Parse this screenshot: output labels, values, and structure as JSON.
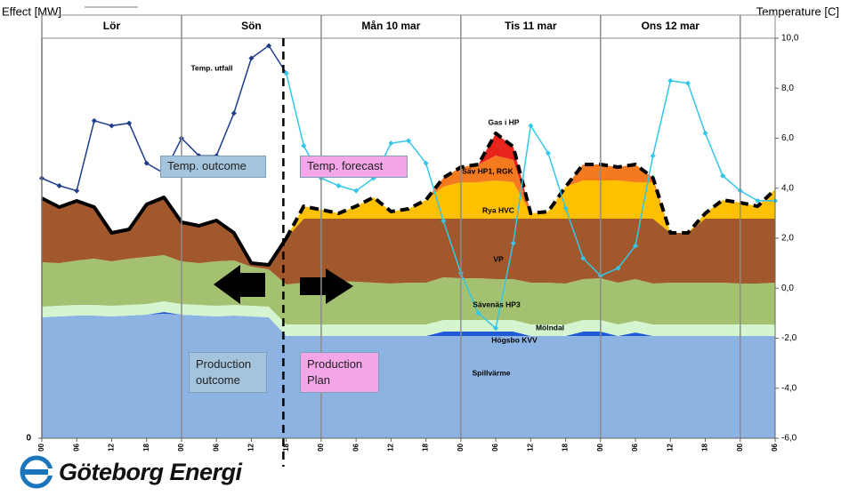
{
  "chart_data": {
    "type": "stacked-area",
    "ylabel": "Effect [MW]",
    "y2label": "Temperature [C]",
    "days": [
      {
        "label": "Lör",
        "start": 0
      },
      {
        "label": "Sön",
        "start": 24
      },
      {
        "label": "Mån 10 mar",
        "start": 48
      },
      {
        "label": "Tis 11 mar",
        "start": 72
      },
      {
        "label": "Ons 12 mar",
        "start": 96
      }
    ],
    "forecast_start": 41.5,
    "x": [
      0,
      3,
      6,
      9,
      12,
      15,
      18,
      21,
      24,
      27,
      30,
      33,
      36,
      39,
      42,
      45,
      48,
      51,
      54,
      57,
      60,
      63,
      66,
      69,
      72,
      75,
      78,
      81,
      84,
      87,
      90,
      93,
      96,
      99,
      102,
      105,
      108,
      111,
      114,
      117,
      120,
      123,
      126
    ],
    "xlim": [
      0,
      126
    ],
    "xticks": [
      {
        "value": 0,
        "label": "00"
      },
      {
        "value": 6,
        "label": "06"
      },
      {
        "value": 12,
        "label": "12"
      },
      {
        "value": 18,
        "label": "18"
      },
      {
        "value": 24,
        "label": "00"
      },
      {
        "value": 30,
        "label": "06"
      },
      {
        "value": 36,
        "label": "12"
      },
      {
        "value": 42,
        "label": "18"
      },
      {
        "value": 48,
        "label": "00"
      },
      {
        "value": 54,
        "label": "06"
      },
      {
        "value": 60,
        "label": "12"
      },
      {
        "value": 66,
        "label": "18"
      },
      {
        "value": 72,
        "label": "00"
      },
      {
        "value": 78,
        "label": "06"
      },
      {
        "value": 84,
        "label": "12"
      },
      {
        "value": 90,
        "label": "18"
      },
      {
        "value": 96,
        "label": "00"
      },
      {
        "value": 102,
        "label": "06"
      },
      {
        "value": 108,
        "label": "12"
      },
      {
        "value": 114,
        "label": "18"
      },
      {
        "value": 120,
        "label": "00"
      },
      {
        "value": 126,
        "label": "06"
      }
    ],
    "ylim": [
      0,
      450
    ],
    "yticks": [
      0
    ],
    "y2lim": [
      -6,
      10
    ],
    "y2ticks": [
      {
        "value": 10,
        "label": "10,0"
      },
      {
        "value": 8,
        "label": "8,0"
      },
      {
        "value": 6,
        "label": "6,0"
      },
      {
        "value": 4,
        "label": "4,0"
      },
      {
        "value": 2,
        "label": "2,0"
      },
      {
        "value": 0,
        "label": "0,0"
      },
      {
        "value": -2,
        "label": "-2,0"
      },
      {
        "value": -4,
        "label": "-4,0"
      },
      {
        "value": -6,
        "label": "-6,0"
      }
    ],
    "series": [
      {
        "name": "Spillvärme",
        "color": "#8db3e2",
        "values": [
          136,
          137,
          138,
          138,
          137,
          138,
          139,
          140,
          139,
          138,
          137,
          138,
          137,
          136,
          115,
          115,
          115,
          115,
          115,
          115,
          115,
          115,
          115,
          115,
          115,
          115,
          115,
          115,
          115,
          115,
          115,
          115,
          115,
          115,
          115,
          115,
          115,
          115,
          115,
          115,
          115,
          115,
          115
        ]
      },
      {
        "name": "Högsbo KVV",
        "color": "#1f5bd6",
        "values": [
          0,
          0,
          0,
          0,
          0,
          0,
          0,
          2,
          0,
          0,
          0,
          0,
          0,
          0,
          0,
          0,
          0,
          0,
          0,
          0,
          0,
          0,
          0,
          5,
          5,
          5,
          5,
          5,
          0,
          0,
          0,
          5,
          5,
          0,
          4,
          0,
          0,
          0,
          0,
          0,
          0,
          0,
          0
        ]
      },
      {
        "name": "Mölndal",
        "color": "#d4f5cf",
        "values": [
          12,
          12,
          12,
          12,
          12,
          12,
          12,
          12,
          12,
          12,
          12,
          12,
          12,
          12,
          13,
          13,
          13,
          13,
          13,
          13,
          13,
          13,
          13,
          13,
          13,
          13,
          13,
          13,
          13,
          13,
          13,
          13,
          13,
          13,
          13,
          13,
          13,
          13,
          13,
          13,
          13,
          13,
          13
        ]
      },
      {
        "name": "Sävenäs HP3",
        "color": "#a4c171",
        "values": [
          50,
          48,
          50,
          52,
          50,
          52,
          53,
          52,
          48,
          47,
          50,
          50,
          44,
          42,
          45,
          47,
          48,
          49,
          48,
          47,
          46,
          47,
          47,
          48,
          47,
          47,
          46,
          46,
          47,
          47,
          46,
          46,
          47,
          47,
          47,
          46,
          47,
          47,
          47,
          47,
          46,
          46,
          47
        ]
      },
      {
        "name": "VP",
        "color": "#a0582c",
        "values": [
          72,
          63,
          67,
          58,
          32,
          33,
          59,
          65,
          44,
          42,
          46,
          31,
          4,
          5,
          52,
          72,
          71,
          70,
          71,
          72,
          73,
          72,
          72,
          66,
          67,
          67,
          68,
          68,
          72,
          72,
          73,
          68,
          67,
          72,
          68,
          73,
          56,
          56,
          72,
          72,
          73,
          73,
          72
        ]
      },
      {
        "name": "Rya HVC",
        "color": "#ffc000",
        "values": [
          0,
          0,
          0,
          0,
          0,
          0,
          0,
          0,
          0,
          0,
          0,
          0,
          0,
          0,
          0,
          14,
          10,
          6,
          14,
          24,
          8,
          11,
          21,
          36,
          41,
          41,
          43,
          41,
          6,
          8,
          36,
          43,
          43,
          43,
          41,
          41,
          0,
          0,
          6,
          21,
          18,
          14,
          33
        ]
      },
      {
        "name": "Säv HP1, RGK",
        "color": "#f47a20",
        "values": [
          0,
          0,
          0,
          0,
          0,
          0,
          0,
          0,
          0,
          0,
          0,
          0,
          0,
          0,
          0,
          0,
          0,
          0,
          0,
          0,
          0,
          0,
          0,
          10,
          17,
          20,
          28,
          25,
          0,
          0,
          0,
          18,
          18,
          15,
          20,
          5,
          0,
          0,
          0,
          0,
          0,
          0,
          0
        ]
      },
      {
        "name": "Gas i HP",
        "color": "#e8251d",
        "values": [
          0,
          0,
          0,
          0,
          0,
          0,
          0,
          0,
          0,
          0,
          0,
          0,
          0,
          0,
          0,
          0,
          0,
          0,
          0,
          0,
          0,
          0,
          0,
          0,
          0,
          0,
          25,
          15,
          0,
          0,
          0,
          0,
          0,
          0,
          0,
          0,
          0,
          0,
          0,
          0,
          0,
          0,
          0
        ]
      },
      {
        "name": "Temp. utfall",
        "color": "#1f3c88",
        "axis": "y2",
        "values": [
          4.4,
          4.1,
          3.9,
          6.7,
          6.5,
          6.6,
          5.0,
          4.6,
          6.0,
          5.3,
          5.3,
          7.0,
          9.2,
          9.7,
          8.6,
          null,
          null,
          null,
          null,
          null,
          null,
          null,
          null,
          null,
          null,
          null,
          null,
          null,
          null,
          null,
          null,
          null,
          null,
          null,
          null,
          null,
          null,
          null,
          null,
          null,
          null,
          null,
          null
        ]
      },
      {
        "color": "#33c6e6",
        "axis": "y2",
        "values": [
          null,
          null,
          null,
          null,
          null,
          null,
          null,
          null,
          null,
          null,
          null,
          null,
          null,
          null,
          8.6,
          5.7,
          4.4,
          4.1,
          3.9,
          4.4,
          5.8,
          5.9,
          5.0,
          2.7,
          0.6,
          -1.0,
          -1.6,
          1.8,
          6.5,
          5.4,
          3.2,
          1.2,
          0.5,
          0.8,
          1.7,
          5.3,
          8.3,
          8.2,
          6.2,
          4.5,
          3.9,
          3.5,
          3.5
        ]
      }
    ],
    "annotations": [
      {
        "text": "Temp. outcome",
        "color": "#a3c4dc"
      },
      {
        "text": "Temp. forecast",
        "color": "#f3a6e8"
      },
      {
        "text": "Production outcome",
        "color": "#a3c4dc"
      },
      {
        "text": "Production Plan",
        "color": "#f3a6e8"
      }
    ]
  },
  "logo": {
    "text": "Göteborg Energi"
  }
}
